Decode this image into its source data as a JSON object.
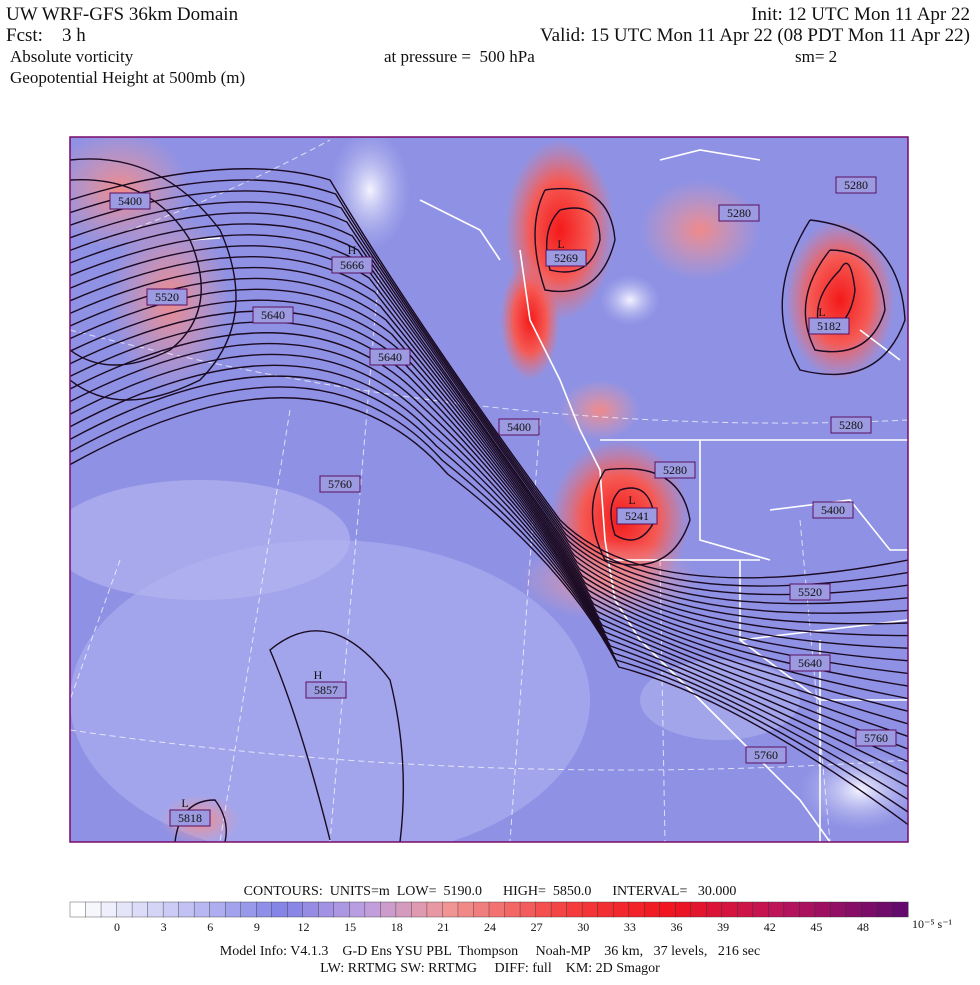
{
  "header": {
    "title": "UW WRF-GFS 36km Domain",
    "init": "Init: 12 UTC Mon 11 Apr 22",
    "forecast": "Fcst:    3 h",
    "valid": "Valid: 15 UTC Mon 11 Apr 22 (08 PDT Mon 11 Apr 22)",
    "field": "Absolute vorticity",
    "pressure": "at pressure =  500 hPa",
    "smoothing": "sm= 2",
    "contour_field": "Geopotential Height at 500mb (m)"
  },
  "contour_labels": [
    "5400",
    "H",
    "5666",
    "5520",
    "5640",
    "5640",
    "L",
    "5269",
    "5280",
    "5280",
    "L",
    "5182",
    "5400",
    "5280",
    "5280",
    "L",
    "5241",
    "5400",
    "5760",
    "5520",
    "5640",
    "H",
    "5857",
    "5760",
    "5760",
    "L",
    "5818"
  ],
  "footer": {
    "contours": "CONTOURS:  UNITS=m  LOW=  5190.0      HIGH=  5850.0      INTERVAL=   30.000",
    "colorbar_labels": [
      "0",
      "3",
      "6",
      "9",
      "12",
      "15",
      "18",
      "21",
      "24",
      "27",
      "30",
      "33",
      "36",
      "39",
      "42",
      "45",
      "48"
    ],
    "colorbar_unit": "10⁻⁵ s⁻¹",
    "model_info": "Model Info: V4.1.3    G-D Ens YSU PBL  Thompson     Noah-MP    36 km,   37 levels,   216 sec",
    "physics": "LW: RRTMG SW: RRTMG     DIFF: full    KM: 2D Smagor"
  }
}
